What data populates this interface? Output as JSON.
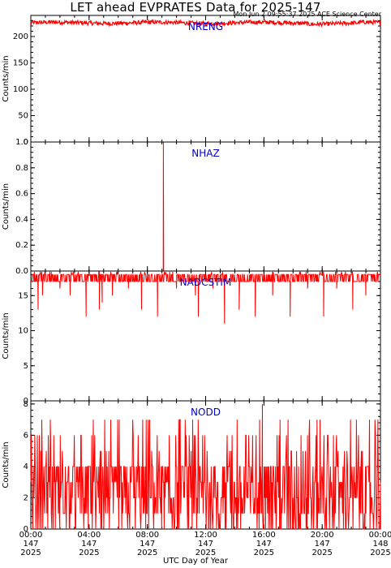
{
  "title": "LET ahead EVPRATES Data for 2025-147",
  "timestamp": "Mon Jun  2 09:55:37 2025 ACE Science Center",
  "xlabel": "UTC Day of Year",
  "colors": {
    "trace": "#ff0000",
    "panel_label": "#0000cc",
    "axes": "#000000"
  },
  "chart_data": [
    {
      "type": "line",
      "label": "NRENG",
      "ylabel": "Counts/min",
      "ylim": [
        0,
        240
      ],
      "yticks": [
        0,
        50,
        100,
        150,
        200
      ],
      "xlim": [
        0,
        24
      ],
      "series_summary": {
        "baseline": 226,
        "jitter": 4,
        "min": 215,
        "max": 236
      }
    },
    {
      "type": "line",
      "label": "NHAZ",
      "ylabel": "Counts/min",
      "ylim": [
        0,
        1.0
      ],
      "yticks": [
        0.0,
        0.2,
        0.4,
        0.6,
        0.8,
        1.0
      ],
      "ytick_labels": [
        "0.0",
        "0.2",
        "0.4",
        "0.6",
        "0.8",
        "1.0"
      ],
      "xlim": [
        0,
        24
      ],
      "series_summary": {
        "baseline": 0,
        "spikes": [
          {
            "x": 9.1,
            "y": 1
          }
        ]
      }
    },
    {
      "type": "line",
      "label": "NADCSTIM",
      "ylabel": "Counts/min",
      "ylim": [
        0,
        18.5
      ],
      "yticks": [
        0,
        5,
        10,
        15
      ],
      "xlim": [
        0,
        24
      ],
      "series_summary": {
        "band": [
          17,
          18
        ],
        "upward_spikes_to": 18.4,
        "dips": [
          {
            "x": 0.5,
            "y": 13
          },
          {
            "x": 0.8,
            "y": 15
          },
          {
            "x": 2.0,
            "y": 16
          },
          {
            "x": 2.7,
            "y": 15
          },
          {
            "x": 3.8,
            "y": 12
          },
          {
            "x": 4.7,
            "y": 13
          },
          {
            "x": 4.9,
            "y": 14
          },
          {
            "x": 5.6,
            "y": 15
          },
          {
            "x": 6.7,
            "y": 16
          },
          {
            "x": 7.6,
            "y": 13
          },
          {
            "x": 8.7,
            "y": 12
          },
          {
            "x": 10.0,
            "y": 16
          },
          {
            "x": 11.3,
            "y": 15
          },
          {
            "x": 11.5,
            "y": 12
          },
          {
            "x": 12.5,
            "y": 16
          },
          {
            "x": 13.3,
            "y": 11
          },
          {
            "x": 14.3,
            "y": 13
          },
          {
            "x": 15.4,
            "y": 12
          },
          {
            "x": 16.6,
            "y": 15
          },
          {
            "x": 17.8,
            "y": 12
          },
          {
            "x": 19.0,
            "y": 16
          },
          {
            "x": 20.1,
            "y": 12
          },
          {
            "x": 21.0,
            "y": 16
          },
          {
            "x": 22.1,
            "y": 13
          },
          {
            "x": 23.0,
            "y": 15
          }
        ]
      }
    },
    {
      "type": "line",
      "label": "NODD",
      "ylabel": "Counts/min",
      "ylim": [
        0,
        8.2
      ],
      "yticks": [
        0,
        2,
        4,
        6,
        8
      ],
      "xlim": [
        0,
        24
      ],
      "series_summary": {
        "typical_range": [
          0,
          4
        ],
        "max": 8,
        "max_at_x": 15.9
      }
    }
  ],
  "x_axis": {
    "ticks": [
      0,
      4,
      8,
      12,
      16,
      20,
      24
    ],
    "tick_labels": [
      {
        "time": "00:00",
        "doy": "147",
        "year": "2025"
      },
      {
        "time": "04:00",
        "doy": "147",
        "year": "2025"
      },
      {
        "time": "08:00",
        "doy": "147",
        "year": "2025"
      },
      {
        "time": "12:00",
        "doy": "147",
        "year": "2025"
      },
      {
        "time": "16:00",
        "doy": "147",
        "year": "2025"
      },
      {
        "time": "20:00",
        "doy": "147",
        "year": "2025"
      },
      {
        "time": "00:00",
        "doy": "148",
        "year": "2025"
      }
    ]
  }
}
